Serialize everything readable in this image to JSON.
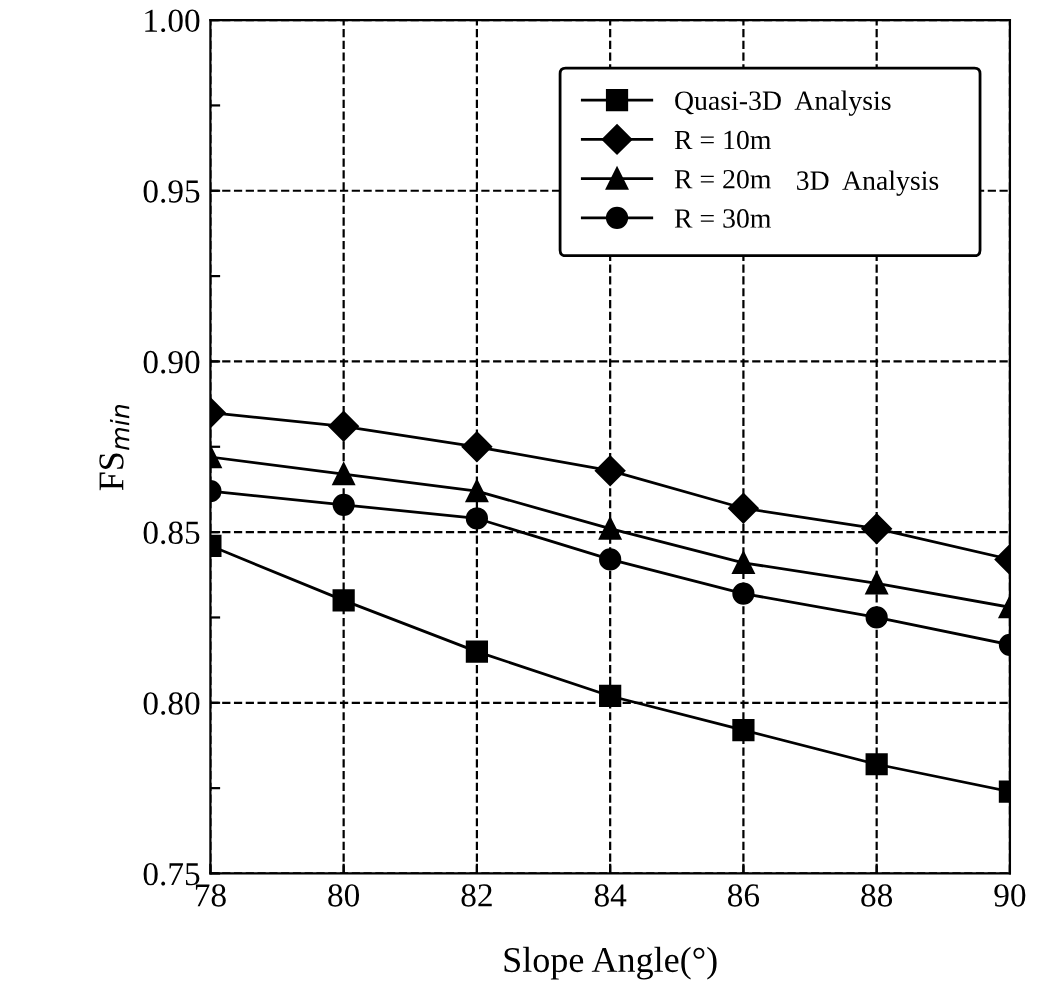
{
  "chart_data": {
    "type": "line",
    "xlabel": "Slope Angle(°)",
    "ylabel": "FS$_{min}$",
    "x": [
      78,
      80,
      82,
      84,
      86,
      88,
      90
    ],
    "series": [
      {
        "name": "Quasi-3D  Analysis",
        "color": "#000000",
        "marker": "square",
        "values": [
          0.846,
          0.83,
          0.815,
          0.802,
          0.792,
          0.782,
          0.774
        ]
      },
      {
        "name": "R = 10m",
        "color": "#000000",
        "marker": "diamond",
        "values": [
          0.885,
          0.881,
          0.875,
          0.868,
          0.857,
          0.851,
          0.842
        ]
      },
      {
        "name": "R = 20m",
        "color": "#000000",
        "marker": "triangle",
        "values": [
          0.872,
          0.867,
          0.862,
          0.851,
          0.841,
          0.835,
          0.828
        ]
      },
      {
        "name": "R = 30m",
        "color": "#000000",
        "marker": "circle",
        "values": [
          0.862,
          0.858,
          0.854,
          0.842,
          0.832,
          0.825,
          0.817
        ]
      }
    ],
    "annotations": [
      "3D  Analysis"
    ],
    "xlim": [
      78,
      90
    ],
    "xticks": [
      78,
      80,
      82,
      84,
      86,
      88,
      90
    ],
    "ylim": [
      0.75,
      1.0
    ],
    "yticks": [
      {
        "value": 0.75,
        "label": "0.75"
      },
      {
        "value": 0.775,
        "label": null
      },
      {
        "value": 0.8,
        "label": "0.80"
      },
      {
        "value": 0.825,
        "label": null
      },
      {
        "value": 0.85,
        "label": "0.85"
      },
      {
        "value": 0.875,
        "label": null
      },
      {
        "value": 0.9,
        "label": "0.90"
      },
      {
        "value": 0.925,
        "label": null
      },
      {
        "value": 0.95,
        "label": "0.95"
      },
      {
        "value": 0.975,
        "label": null
      },
      {
        "value": 1.0,
        "label": "1.00"
      }
    ],
    "grid": true,
    "legend": "top right",
    "line_style": "solid"
  }
}
